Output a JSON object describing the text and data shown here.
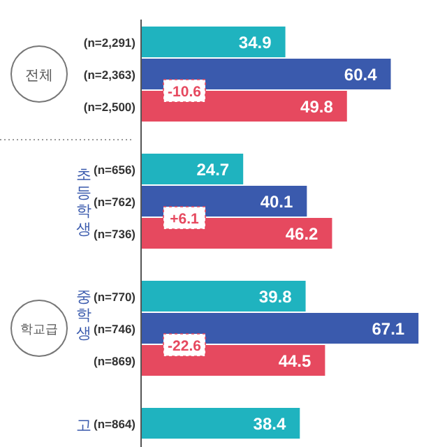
{
  "chart_data": {
    "type": "bar",
    "orientation": "horizontal",
    "categories": [
      "(n=2,291)",
      "(n=2,363)",
      "(n=2,500)",
      "(n=656)",
      "(n=762)",
      "(n=736)",
      "(n=770)",
      "(n=746)",
      "(n=869)",
      "(n=864)"
    ],
    "values": [
      34.9,
      60.4,
      49.8,
      24.7,
      40.1,
      46.2,
      39.8,
      67.1,
      44.5,
      38.4
    ],
    "colors": [
      "#1fb3bf",
      "#3a5aad",
      "#e6495f",
      "#1fb3bf",
      "#3a5aad",
      "#e6495f",
      "#1fb3bf",
      "#3a5aad",
      "#e6495f",
      "#1fb3bf"
    ],
    "xlim": [
      0,
      74
    ],
    "data_labels": true,
    "tick_labels": "y",
    "annotations": [
      "전체",
      "학교급",
      "초등학생",
      "중학생",
      "고",
      "-10.6",
      "+6.1",
      "-22.6"
    ]
  }
}
